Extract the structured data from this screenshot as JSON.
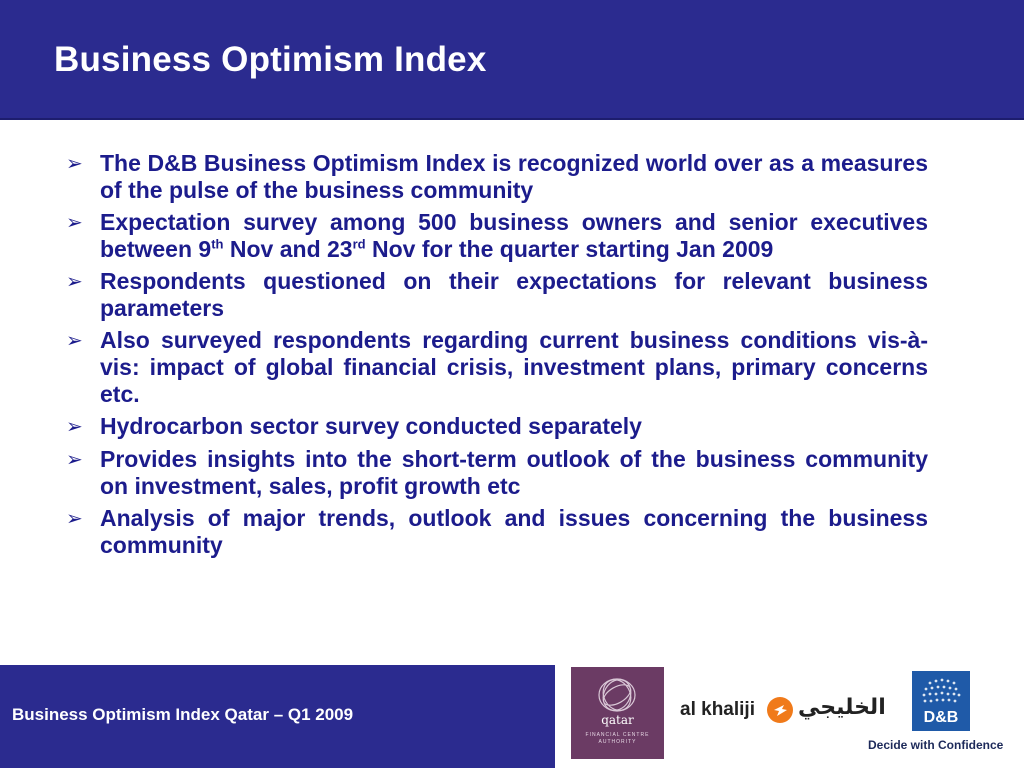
{
  "slide": {
    "title": "Business Optimism Index",
    "bullets": [
      {
        "text": "The D&B Business Optimism Index is recognized world over as a measures of the pulse of the business community"
      },
      {
        "p1": "Expectation survey among 500 business owners and senior executives between 9",
        "s1": "th",
        "p2": " Nov and 23",
        "s2": "rd",
        "p3": " Nov for the quarter starting Jan 2009"
      },
      {
        "text": "Respondents questioned on their expectations for relevant business parameters"
      },
      {
        "text": "Also surveyed respondents regarding current business conditions vis-à-vis: impact of global financial crisis, investment plans, primary concerns etc."
      },
      {
        "text": "Hydrocarbon sector survey conducted separately"
      },
      {
        "text": "Provides insights into the short-term outlook of the business community  on investment, sales, profit growth etc"
      },
      {
        "text": "Analysis of major trends, outlook and issues concerning the business community"
      }
    ],
    "bullet_glyph": "➢"
  },
  "footer": {
    "text": "Business Optimism Index Qatar – Q1 2009",
    "qfc_logo": {
      "word": "qatar",
      "sub": "FINANCIAL CENTRE AUTHORITY"
    },
    "alkhaliji_logo": {
      "en": "al khaliji",
      "ar": "الخليجي"
    },
    "db_logo": {
      "text": "D&B"
    },
    "tagline": "Decide with Confidence"
  },
  "colors": {
    "header": "#2b2b8f",
    "text": "#1c1c8c",
    "qfc": "#6b3b64",
    "db": "#1f5aa8",
    "alkhaliji_mark": "#f07a1a"
  }
}
